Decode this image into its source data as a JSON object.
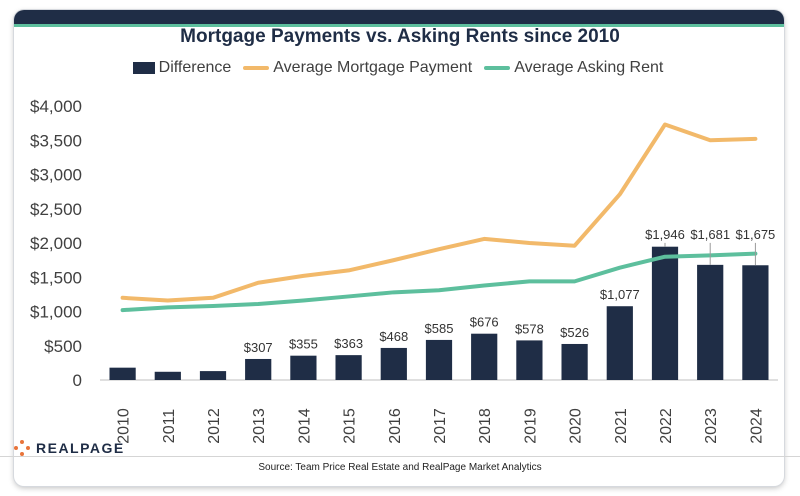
{
  "title": "Mortgage Payments vs. Asking Rents since 2010",
  "source": "Source: Team Price Real Estate and RealPage Market Analytics",
  "brand": {
    "name": "REALPAGE",
    "accent": "#e8743b"
  },
  "legend": {
    "difference": "Difference",
    "mortgage": "Average Mortgage Payment",
    "rent": "Average Asking Rent"
  },
  "colors": {
    "difference": "#1f2d46",
    "mortgage": "#f2b96a",
    "rent": "#5dbf9d",
    "navy": "#1f2d46"
  },
  "chart_data": {
    "type": "bar",
    "title": "Mortgage Payments vs. Asking Rents since 2010",
    "categories": [
      "2010",
      "2011",
      "2012",
      "2013",
      "2014",
      "2015",
      "2016",
      "2017",
      "2018",
      "2019",
      "2020",
      "2021",
      "2022",
      "2023",
      "2024"
    ],
    "ylim": [
      0,
      4000
    ],
    "yticks": [
      0,
      500,
      1000,
      1500,
      2000,
      2500,
      3000,
      3500,
      4000
    ],
    "ytick_labels": [
      "0",
      "$500",
      "$1,000",
      "$1,500",
      "$2,000",
      "$2,500",
      "$3,000",
      "$3,500",
      "$4,000"
    ],
    "legend_position": "top-center",
    "grid": false,
    "series": [
      {
        "name": "Difference",
        "type": "bar",
        "values": [
          180,
          120,
          130,
          307,
          355,
          363,
          468,
          585,
          676,
          578,
          526,
          1077,
          1946,
          1681,
          1675
        ],
        "labels": [
          "",
          "",
          "",
          "$307",
          "$355",
          "$363",
          "$468",
          "$585",
          "$676",
          "$578",
          "$526",
          "$1,077",
          "$1,946",
          "$1,681",
          "$1,675"
        ]
      },
      {
        "name": "Average Mortgage Payment",
        "type": "line",
        "values": [
          1200,
          1160,
          1200,
          1420,
          1520,
          1600,
          1750,
          1910,
          2060,
          2000,
          1960,
          2710,
          3730,
          3500,
          3520
        ]
      },
      {
        "name": "Average Asking Rent",
        "type": "line",
        "values": [
          1020,
          1060,
          1080,
          1110,
          1160,
          1220,
          1280,
          1310,
          1380,
          1440,
          1440,
          1640,
          1800,
          1820,
          1845
        ]
      }
    ]
  }
}
